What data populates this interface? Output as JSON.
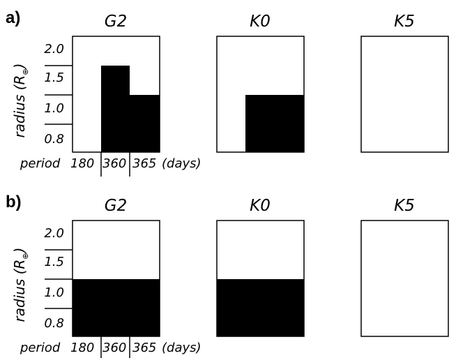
{
  "chart_data": [
    {
      "type": "heatmap",
      "panel": "a)",
      "ylabel": "radius (R",
      "ylabel_subscript": "⊕",
      "ylabel_close": ")",
      "xlabel_prefix": "period",
      "xlabel_suffix": "(days)",
      "x_ticks": [
        "180",
        "360",
        "365"
      ],
      "y_ticks": [
        "2.0",
        "1.5",
        "1.0",
        "0.8"
      ],
      "x_edges": [
        180,
        360,
        365
      ],
      "y_edges": [
        0.8,
        1.0,
        1.5,
        2.0
      ],
      "subplots": [
        {
          "title": "G2",
          "filled": [
            {
              "x": [
                360,
                363
              ],
              "y": [
                0.8,
                1.5
              ]
            },
            {
              "x": [
                363,
                365
              ],
              "y": [
                0.8,
                1.0
              ]
            }
          ]
        },
        {
          "title": "K0",
          "filled": [
            {
              "x": [
                360,
                365
              ],
              "y": [
                0.8,
                1.0
              ]
            }
          ]
        },
        {
          "title": "K5",
          "filled": []
        }
      ]
    },
    {
      "type": "heatmap",
      "panel": "b)",
      "ylabel": "radius (R",
      "ylabel_subscript": "⊕",
      "ylabel_close": ")",
      "xlabel_prefix": "period",
      "xlabel_suffix": "(days)",
      "x_ticks": [
        "180",
        "360",
        "365"
      ],
      "y_ticks": [
        "2.0",
        "1.5",
        "1.0",
        "0.8"
      ],
      "x_edges": [
        180,
        360,
        365
      ],
      "y_edges": [
        0.8,
        1.0,
        1.5,
        2.0
      ],
      "subplots": [
        {
          "title": "G2",
          "filled": [
            {
              "x": [
                180,
                365
              ],
              "y": [
                0.8,
                1.0
              ]
            }
          ]
        },
        {
          "title": "K0",
          "filled": [
            {
              "x": [
                180,
                365
              ],
              "y": [
                0.8,
                1.0
              ]
            }
          ]
        },
        {
          "title": "K5",
          "filled": []
        }
      ]
    }
  ]
}
